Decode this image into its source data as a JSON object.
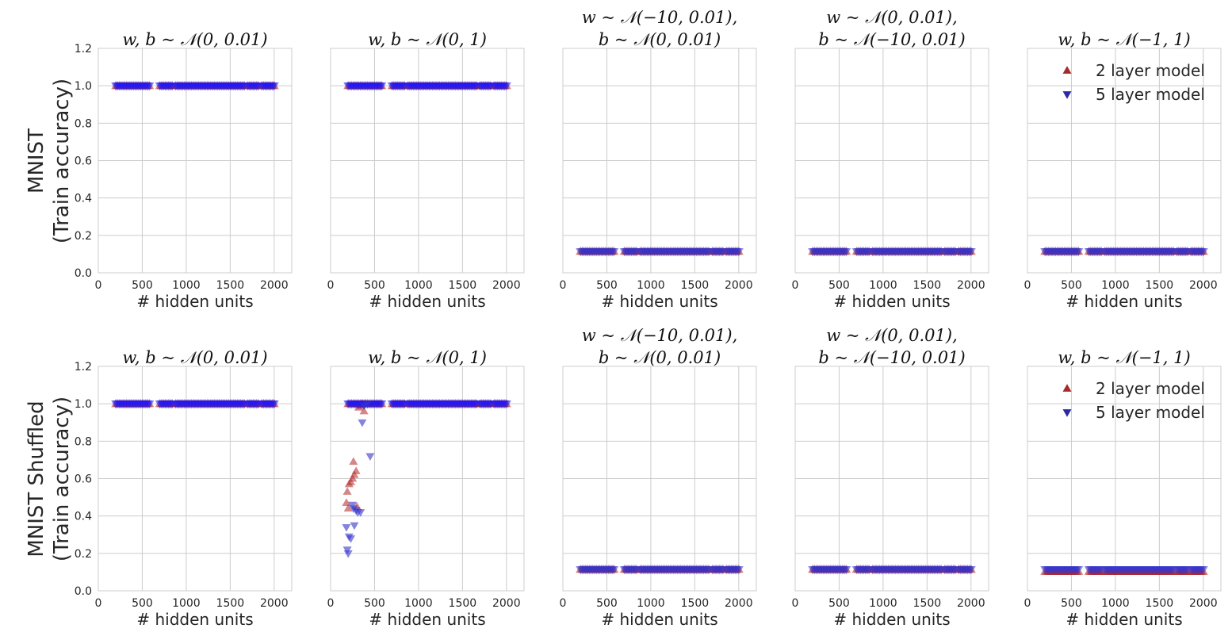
{
  "chart_data": {
    "type": "scatter",
    "layout": "2x5 grid",
    "rows": [
      {
        "label_line1": "MNIST",
        "label_line2": "(Train accuracy)"
      },
      {
        "label_line1": "MNIST Shuffled",
        "label_line2": "(Train accuracy)"
      }
    ],
    "panel_titles": [
      [
        "w, b ~ 𝒩(0, 0.01)"
      ],
      [
        "w, b ~ 𝒩(0, 1)"
      ],
      [
        "w ~ 𝒩(−10, 0.01),",
        "b ~ 𝒩(0, 0.01)"
      ],
      [
        "w ~ 𝒩(0, 0.01),",
        "b ~ 𝒩(−10, 0.01)"
      ],
      [
        "w, b ~ 𝒩(−1, 1)"
      ]
    ],
    "xlabel": "# hidden units",
    "xlim": [
      0,
      2200
    ],
    "xticks": [
      "0",
      "500",
      "1000",
      "1500",
      "2000"
    ],
    "xtick_values": [
      0,
      500,
      1000,
      1500,
      2000
    ],
    "ylim": [
      0,
      1.2
    ],
    "yticks": [
      "0.0",
      "0.2",
      "0.4",
      "0.6",
      "0.8",
      "1.0",
      "1.2"
    ],
    "ytick_values": [
      0,
      0.2,
      0.4,
      0.6,
      0.8,
      1.0,
      1.2
    ],
    "grid": true,
    "legend": {
      "placement": "top-right",
      "panels": [
        "row1-col5",
        "row2-col5"
      ],
      "entries": [
        {
          "label": "2 layer model",
          "marker": "triangle-up",
          "color": "#a52a2a"
        },
        {
          "label": "5 layer model",
          "marker": "triangle-down",
          "color": "#2a2aa5"
        }
      ]
    },
    "series_colors": {
      "two_layer": "#b22222",
      "five_layer": "#3333cc",
      "five_layer_high_acc": "#1a1aff"
    },
    "x_values": [
      200,
      220,
      240,
      260,
      280,
      300,
      320,
      340,
      360,
      380,
      400,
      420,
      440,
      460,
      480,
      500,
      520,
      540,
      560,
      580,
      700,
      720,
      740,
      760,
      780,
      800,
      820,
      840,
      880,
      900,
      920,
      940,
      960,
      980,
      1000,
      1020,
      1040,
      1060,
      1080,
      1100,
      1120,
      1140,
      1160,
      1180,
      1200,
      1220,
      1240,
      1260,
      1280,
      1300,
      1320,
      1340,
      1360,
      1380,
      1400,
      1420,
      1440,
      1460,
      1480,
      1500,
      1520,
      1540,
      1560,
      1580,
      1600,
      1620,
      1640,
      1660,
      1700,
      1720,
      1740,
      1760,
      1780,
      1800,
      1820,
      1860,
      1880,
      1900,
      1920,
      1940,
      1960,
      1980,
      2000
    ],
    "panel_levels": [
      {
        "two_layer": 1.0,
        "five_layer": 1.0
      },
      {
        "two_layer": 1.0,
        "five_layer": 1.0
      },
      {
        "two_layer": 0.114,
        "five_layer": 0.114
      },
      {
        "two_layer": 0.114,
        "five_layer": 0.114
      },
      {
        "two_layer": 0.114,
        "five_layer": 0.114
      },
      {
        "two_layer": 1.0,
        "five_layer": 1.0
      },
      {
        "two_layer": 1.0,
        "five_layer": 1.0
      },
      {
        "two_layer": 0.114,
        "five_layer": 0.114
      },
      {
        "two_layer": 0.114,
        "five_layer": 0.114
      },
      {
        "two_layer": 0.103,
        "five_layer": 0.114
      }
    ],
    "shuffled_init_unit_variance_low_width": {
      "two_layer": [
        [
          180,
          0.47
        ],
        [
          190,
          0.53
        ],
        [
          200,
          0.44
        ],
        [
          210,
          0.57
        ],
        [
          230,
          0.58
        ],
        [
          250,
          0.6
        ],
        [
          260,
          0.69
        ],
        [
          270,
          0.62
        ],
        [
          290,
          0.64
        ],
        [
          300,
          0.45
        ],
        [
          320,
          0.98
        ],
        [
          340,
          0.99
        ],
        [
          360,
          1.0
        ],
        [
          380,
          0.96
        ],
        [
          400,
          1.0
        ]
      ],
      "five_layer": [
        [
          180,
          0.34
        ],
        [
          190,
          0.22
        ],
        [
          200,
          0.2
        ],
        [
          210,
          0.29
        ],
        [
          230,
          0.28
        ],
        [
          250,
          0.46
        ],
        [
          260,
          0.44
        ],
        [
          270,
          0.35
        ],
        [
          290,
          0.43
        ],
        [
          310,
          0.42
        ],
        [
          340,
          0.42
        ],
        [
          360,
          0.9
        ],
        [
          380,
          0.99
        ],
        [
          420,
          1.0
        ],
        [
          450,
          0.72
        ]
      ]
    }
  }
}
